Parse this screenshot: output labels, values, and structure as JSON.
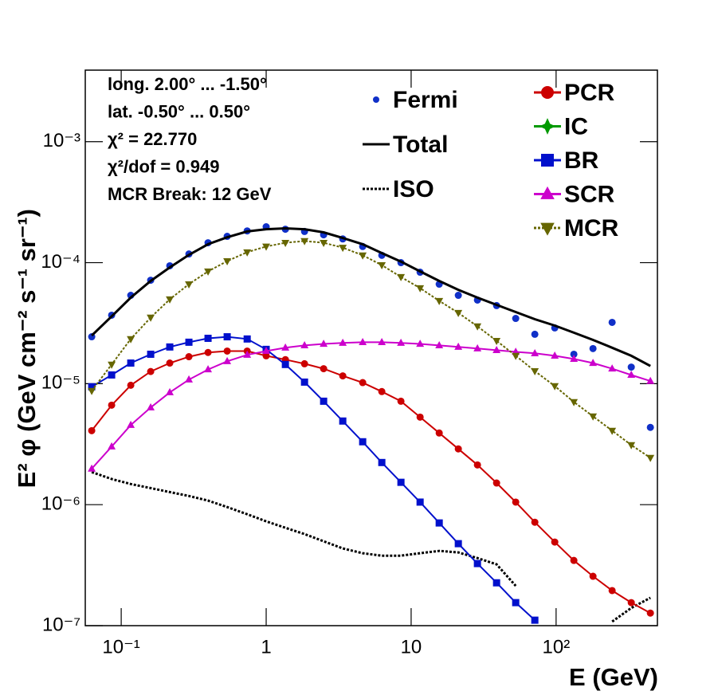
{
  "chart_data": {
    "type": "scatter",
    "xlabel": "E (GeV)",
    "ylabel": "E² φ (GeV cm⁻² s⁻¹ sr⁻¹)",
    "xlog": true,
    "ylog": true,
    "grid": false,
    "xlim": [
      0.0565,
      500
    ],
    "ylim": [
      1e-07,
      0.0039
    ],
    "xticks": [
      {
        "value": 0.1,
        "label": "10⁻¹"
      },
      1,
      10,
      {
        "value": 100,
        "label": "10²"
      }
    ],
    "yticks": [
      {
        "value": 1e-07,
        "label": "10⁻⁷"
      },
      {
        "value": 1e-06,
        "label": "10⁻⁶"
      },
      {
        "value": 1e-05,
        "label": "10⁻⁵"
      },
      {
        "value": 0.0001,
        "label": "10⁻⁴"
      },
      {
        "value": 0.001,
        "label": "10⁻³"
      }
    ],
    "annotations": [
      "long. 2.00° ... -1.50°",
      "lat. -0.50° ... 0.50°",
      "χ² = 22.770",
      "χ²/dof = 0.949",
      "MCR Break: 12 GeV"
    ],
    "x": [
      0.0626,
      0.0859,
      0.1164,
      0.1597,
      0.2163,
      0.2931,
      0.3972,
      0.5383,
      0.7396,
      1.0,
      1.357,
      1.839,
      2.491,
      3.376,
      4.632,
      6.277,
      8.505,
      11.53,
      15.62,
      21.16,
      28.67,
      38.85,
      52.65,
      71.34,
      97.9,
      132.6,
      179.7,
      243.5,
      330.0,
      447.1
    ],
    "series": [
      {
        "name": "Fermi",
        "color": "#1030c8",
        "marker": "circle",
        "values": [
          2.44e-05,
          3.68e-05,
          5.37e-05,
          7.16e-05,
          9.42e-05,
          0.000118,
          0.000146,
          0.000165,
          0.000183,
          0.000198,
          0.000189,
          0.000181,
          0.00017,
          0.000157,
          0.000136,
          0.000115,
          0.0001,
          8.34e-05,
          6.64e-05,
          5.37e-05,
          4.91e-05,
          4.42e-05,
          3.46e-05,
          2.56e-05,
          2.89e-05,
          1.75e-05,
          1.95e-05,
          3.21e-05,
          1.37e-05,
          4.35e-06
        ]
      },
      {
        "name": "Total",
        "color": "#000000",
        "line_style": "solid",
        "values": [
          2.5e-05,
          3.6e-05,
          5.14e-05,
          7.06e-05,
          9.14e-05,
          0.000116,
          0.000142,
          0.000162,
          0.000181,
          0.000189,
          0.000192,
          0.000189,
          0.000178,
          0.00016,
          0.000142,
          0.00012,
          0.000102,
          8.47e-05,
          7.06e-05,
          5.97e-05,
          5.14e-05,
          4.48e-05,
          3.91e-05,
          3.41e-05,
          3.02e-05,
          2.64e-05,
          2.3e-05,
          1.98e-05,
          1.7e-05,
          1.4e-05
        ]
      },
      {
        "name": "ISO",
        "color": "#000000",
        "line_style": "dotted",
        "values": [
          1.86e-06,
          1.63e-06,
          1.48e-06,
          1.37e-06,
          1.27e-06,
          1.18e-06,
          1.08e-06,
          9.55e-07,
          8.34e-07,
          7.28e-07,
          6.44e-07,
          5.71e-07,
          4.98e-07,
          4.35e-07,
          3.97e-07,
          3.79e-07,
          3.79e-07,
          3.97e-07,
          4.15e-07,
          4.03e-07,
          3.62e-07,
          3.21e-07,
          2.13e-07,
          null,
          null,
          null,
          null,
          1.08e-07,
          1.4e-07,
          1.7e-07
        ]
      },
      {
        "name": "PCR",
        "color": "#cc0000",
        "marker": "circle",
        "line_style": "solid",
        "values": [
          4.09e-06,
          6.64e-06,
          9.7e-06,
          1.26e-05,
          1.48e-05,
          1.67e-05,
          1.81e-05,
          1.86e-05,
          1.86e-05,
          1.7e-05,
          1.58e-05,
          1.46e-05,
          1.33e-05,
          1.16e-05,
          1.02e-05,
          8.6e-06,
          7.16e-06,
          5.29e-06,
          3.91e-06,
          2.89e-06,
          2.13e-06,
          1.51e-06,
          1.05e-06,
          7.16e-07,
          4.91e-07,
          3.46e-07,
          2.56e-07,
          1.95e-07,
          1.55e-07,
          1.27e-07
        ]
      },
      {
        "name": "IC",
        "color": "#009900",
        "marker": "star",
        "line_style": "solid",
        "values": [
          null,
          null,
          null,
          null,
          null,
          null,
          null,
          null,
          null,
          null,
          null,
          null,
          null,
          null,
          null,
          null,
          null,
          null,
          null,
          null,
          null,
          null,
          null,
          null,
          null,
          null,
          null,
          null,
          null,
          null
        ]
      },
      {
        "name": "BR",
        "color": "#0010cc",
        "marker": "square",
        "line_style": "solid",
        "values": [
          9.42e-06,
          1.18e-05,
          1.48e-05,
          1.75e-05,
          2.01e-05,
          2.2e-05,
          2.37e-05,
          2.44e-05,
          2.34e-05,
          1.92e-05,
          1.44e-05,
          1.03e-05,
          7.16e-06,
          4.91e-06,
          3.31e-06,
          2.23e-06,
          1.53e-06,
          1.05e-06,
          7.06e-07,
          4.76e-07,
          3.26e-07,
          2.26e-07,
          1.55e-07,
          1.11e-07,
          null,
          null,
          null,
          null,
          null,
          null
        ]
      },
      {
        "name": "SCR",
        "color": "#cc00cc",
        "marker": "triangle",
        "line_style": "solid",
        "values": [
          1.98e-06,
          3.02e-06,
          4.55e-06,
          6.35e-06,
          8.47e-06,
          1.08e-05,
          1.31e-05,
          1.53e-05,
          1.73e-05,
          1.86e-05,
          1.98e-05,
          2.07e-05,
          2.13e-05,
          2.17e-05,
          2.2e-05,
          2.2e-05,
          2.17e-05,
          2.13e-05,
          2.07e-05,
          2.01e-05,
          1.95e-05,
          1.89e-05,
          1.83e-05,
          1.78e-05,
          1.7e-05,
          1.6e-05,
          1.48e-05,
          1.33e-05,
          1.18e-05,
          1.05e-05
        ]
      },
      {
        "name": "MCR",
        "color": "#666600",
        "marker": "triangle-down",
        "line_style": "dotted",
        "values": [
          8.73e-06,
          1.44e-05,
          2.34e-05,
          3.52e-05,
          4.98e-05,
          6.64e-05,
          8.47e-05,
          0.000103,
          0.000122,
          0.000136,
          0.000146,
          0.000151,
          0.000146,
          0.000133,
          0.000115,
          9.55e-05,
          7.62e-05,
          6.16e-05,
          4.83e-05,
          3.85e-05,
          2.98e-05,
          2.26e-05,
          1.7e-05,
          1.27e-05,
          9.55e-06,
          7.06e-06,
          5.37e-06,
          4.09e-06,
          3.11e-06,
          2.44e-06
        ]
      }
    ]
  }
}
